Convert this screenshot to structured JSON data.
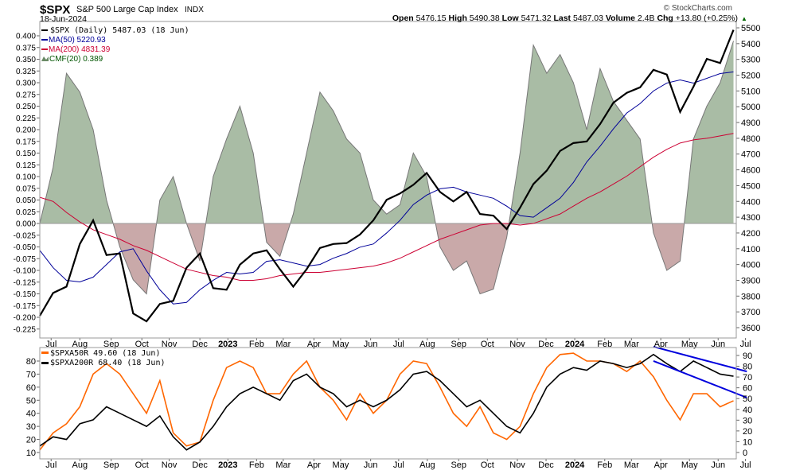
{
  "header": {
    "symbol": "$SPX",
    "name": "S&P 500 Large Cap Index",
    "exchange": "INDX",
    "date": "18-Jun-2024",
    "watermark": "© StockCharts.com",
    "stats": [
      {
        "label": "Open",
        "value": "5476.15"
      },
      {
        "label": "High",
        "value": "5490.38"
      },
      {
        "label": "Low",
        "value": "5471.32"
      },
      {
        "label": "Last",
        "value": "5487.03"
      },
      {
        "label": "Volume",
        "value": "2.4B"
      },
      {
        "label": "Chg",
        "value": "+13.80 (+0.25%)"
      }
    ]
  },
  "legend": {
    "spx": "$SPX (Daily) 5487.03 (18 Jun)",
    "ma50": "MA(50) 5220.93",
    "ma200": "MA(200) 4831.39",
    "cmf": "CMF(20) 0.389",
    "a50": "$SPXA50R 49.60 (18 Jun)",
    "a200": "$SPXA200R 68.40 (18 Jun)"
  },
  "colors": {
    "spx": "#000000",
    "ma50": "#000099",
    "ma200": "#cc0033",
    "cmf_pos": "#a9bca5",
    "cmf_neg": "#c9a9a9",
    "a50": "#ff6600",
    "a200": "#000000",
    "trend": "#0000dd"
  },
  "chart_data": [
    {
      "type": "line",
      "title": "$SPX S&P 500 Large Cap Index",
      "x_unit": "weeks since 17-Jun-2022",
      "x_step": 2,
      "ylim_price": [
        3600,
        5500
      ],
      "ylim_cmf": [
        -0.225,
        0.4
      ],
      "price_ticks": [
        3600,
        3700,
        3800,
        3900,
        4000,
        4100,
        4200,
        4300,
        4400,
        4500,
        4600,
        4700,
        4800,
        4900,
        5000,
        5100,
        5200,
        5300,
        5400,
        5500
      ],
      "cmf_ticks": [
        "0.400",
        "0.375",
        "0.350",
        "0.325",
        "0.300",
        "0.275",
        "0.250",
        "0.225",
        "0.200",
        "0.175",
        "0.150",
        "0.125",
        "0.100",
        "0.075",
        "0.050",
        "0.025",
        "0.000",
        "-0.025",
        "-0.050",
        "-0.075",
        "-0.100",
        "-0.125",
        "-0.150",
        "-0.175",
        "-0.200",
        "-0.225"
      ],
      "series": [
        {
          "name": "$SPX",
          "values": [
            3675,
            3820,
            3860,
            4130,
            4280,
            4060,
            4070,
            3690,
            3640,
            3750,
            3770,
            3980,
            4070,
            3850,
            3840,
            3999,
            4070,
            4090,
            3970,
            3860,
            3970,
            4105,
            4130,
            4136,
            4190,
            4280,
            4410,
            4450,
            4505,
            4580,
            4460,
            4400,
            4460,
            4320,
            4310,
            4225,
            4360,
            4510,
            4595,
            4720,
            4770,
            4780,
            4890,
            5026,
            5088,
            5123,
            5234,
            5204,
            4967,
            5127,
            5303,
            5277,
            5487
          ]
        },
        {
          "name": "MA(50)",
          "values": [
            4090,
            3980,
            3900,
            3890,
            3920,
            4000,
            4080,
            4100,
            3960,
            3840,
            3750,
            3760,
            3840,
            3900,
            3950,
            3940,
            3950,
            4020,
            4030,
            4010,
            3990,
            4000,
            4040,
            4070,
            4110,
            4130,
            4200,
            4280,
            4380,
            4440,
            4480,
            4490,
            4460,
            4440,
            4420,
            4370,
            4310,
            4300,
            4360,
            4420,
            4520,
            4650,
            4750,
            4860,
            4960,
            5020,
            5100,
            5150,
            5170,
            5150,
            5180,
            5210,
            5221
          ]
        },
        {
          "name": "MA(200)",
          "values": [
            4426,
            4400,
            4330,
            4270,
            4220,
            4190,
            4160,
            4120,
            4090,
            4050,
            4010,
            3970,
            3950,
            3930,
            3920,
            3900,
            3900,
            3910,
            3930,
            3940,
            3950,
            3950,
            3960,
            3970,
            3980,
            3990,
            4010,
            4040,
            4080,
            4120,
            4160,
            4190,
            4220,
            4250,
            4260,
            4260,
            4250,
            4260,
            4290,
            4320,
            4370,
            4420,
            4460,
            4510,
            4560,
            4620,
            4680,
            4730,
            4770,
            4790,
            4800,
            4815,
            4831
          ]
        },
        {
          "name": "CMF(20)",
          "values": [
            0.0,
            0.12,
            0.32,
            0.28,
            0.2,
            0.05,
            -0.05,
            -0.12,
            -0.15,
            0.05,
            0.1,
            0.0,
            -0.08,
            0.1,
            0.18,
            0.25,
            0.15,
            -0.04,
            -0.07,
            0.02,
            0.15,
            0.28,
            0.24,
            0.18,
            0.15,
            0.05,
            0.02,
            0.04,
            0.15,
            0.1,
            -0.05,
            -0.1,
            -0.08,
            -0.15,
            -0.14,
            -0.03,
            0.15,
            0.38,
            0.32,
            0.36,
            0.3,
            0.2,
            0.33,
            0.26,
            0.22,
            0.18,
            -0.02,
            -0.1,
            -0.08,
            0.18,
            0.25,
            0.3,
            0.389
          ]
        }
      ]
    },
    {
      "type": "line",
      "title": "Percent above MA",
      "ylim_left": [
        10,
        80
      ],
      "left_ticks": [
        10,
        20,
        30,
        40,
        50,
        60,
        70,
        80
      ],
      "right_ticks": [
        0,
        10,
        20,
        30,
        40,
        50,
        60,
        70,
        80,
        90
      ],
      "x_step": 2,
      "series": [
        {
          "name": "$SPXA50R",
          "values": [
            12,
            25,
            32,
            45,
            70,
            78,
            70,
            55,
            40,
            65,
            25,
            15,
            18,
            50,
            75,
            80,
            75,
            55,
            55,
            70,
            80,
            60,
            50,
            35,
            55,
            40,
            50,
            70,
            80,
            78,
            60,
            40,
            30,
            45,
            25,
            20,
            30,
            55,
            75,
            85,
            86,
            80,
            80,
            78,
            72,
            80,
            68,
            50,
            35,
            55,
            55,
            45,
            49.6
          ]
        },
        {
          "name": "$SPXA200R",
          "values": [
            15,
            22,
            20,
            32,
            35,
            45,
            40,
            35,
            30,
            38,
            22,
            12,
            18,
            30,
            45,
            55,
            60,
            55,
            50,
            65,
            70,
            60,
            55,
            45,
            50,
            45,
            50,
            58,
            70,
            72,
            65,
            55,
            45,
            50,
            40,
            30,
            25,
            40,
            60,
            70,
            75,
            73,
            80,
            78,
            75,
            78,
            85,
            78,
            72,
            80,
            75,
            70,
            68.4
          ]
        }
      ],
      "trendlines": [
        {
          "name": "upper",
          "x": [
            92,
            106
          ],
          "y": [
            91,
            72
          ]
        },
        {
          "name": "lower",
          "x": [
            92,
            106
          ],
          "y": [
            80,
            52
          ]
        }
      ]
    }
  ],
  "x_ticks": [
    {
      "label": "Jul",
      "w": 1.7
    },
    {
      "label": "Aug",
      "w": 6.0
    },
    {
      "label": "Sep",
      "w": 10.7
    },
    {
      "label": "Oct",
      "w": 15.3
    },
    {
      "label": "Nov",
      "w": 19.4
    },
    {
      "label": "Dec",
      "w": 24.0
    },
    {
      "label": "2023",
      "w": 28.2,
      "bold": true
    },
    {
      "label": "Feb",
      "w": 32.5
    },
    {
      "label": "Mar",
      "w": 36.5
    },
    {
      "label": "Apr",
      "w": 41.1
    },
    {
      "label": "May",
      "w": 45.1
    },
    {
      "label": "Jun",
      "w": 49.6
    },
    {
      "label": "Jul",
      "w": 53.8
    },
    {
      "label": "Aug",
      "w": 58.1
    },
    {
      "label": "Sep",
      "w": 62.8
    },
    {
      "label": "Oct",
      "w": 67.1
    },
    {
      "label": "Nov",
      "w": 71.6
    },
    {
      "label": "Dec",
      "w": 75.9
    },
    {
      "label": "2024",
      "w": 80.2,
      "bold": true
    },
    {
      "label": "Feb",
      "w": 84.7
    },
    {
      "label": "Mar",
      "w": 88.7
    },
    {
      "label": "Apr",
      "w": 93.1
    },
    {
      "label": "May",
      "w": 97.4
    },
    {
      "label": "Jun",
      "w": 101.7
    },
    {
      "label": "Jul",
      "w": 105.8
    }
  ]
}
